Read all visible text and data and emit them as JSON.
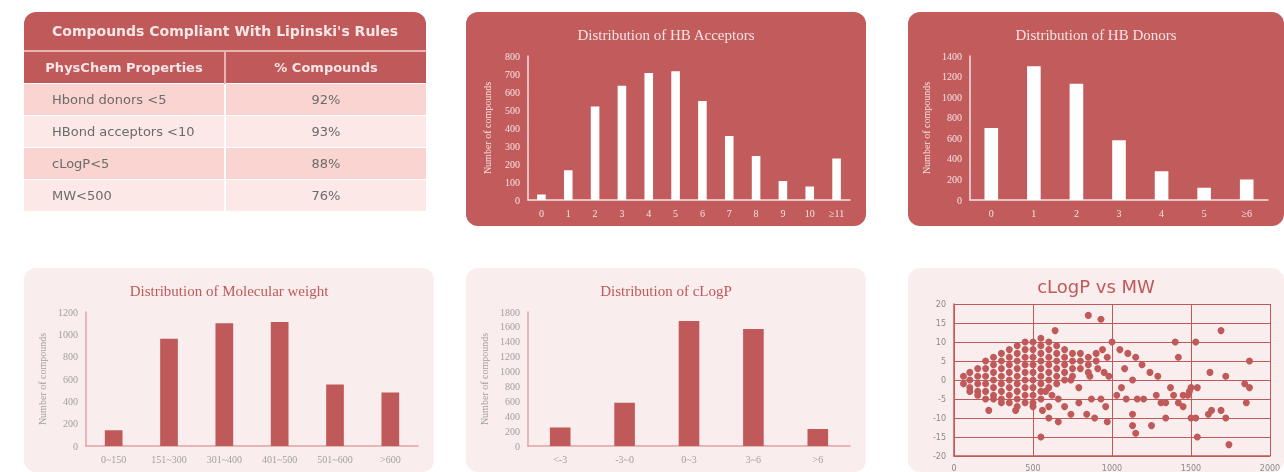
{
  "chart_data": [
    {
      "type": "other",
      "title": "Compounds Compliant With Lipinski's Rules",
      "xlabel": "PhysChem Properties",
      "ylabel": "% Compounds",
      "categories": [
        "Hbond donors <5",
        "HBond acceptors <10",
        "cLogP<5",
        "MW<500"
      ],
      "values": [
        92,
        93,
        88,
        76
      ],
      "value_labels": [
        "92%",
        "93%",
        "88%",
        "76%"
      ]
    },
    {
      "type": "bar",
      "title": "Distribution of HB Acceptors",
      "ylabel": "Number of compounds",
      "categories": [
        "0",
        "1",
        "2",
        "3",
        "4",
        "5",
        "6",
        "7",
        "8",
        "9",
        "10",
        "≥11"
      ],
      "values": [
        30,
        165,
        520,
        635,
        705,
        715,
        550,
        355,
        245,
        105,
        75,
        230
      ],
      "color": "#ffffff",
      "ylim": [
        0,
        800
      ],
      "yticks": [
        0,
        100,
        200,
        300,
        400,
        500,
        600,
        700,
        800
      ],
      "grid": false
    },
    {
      "type": "bar",
      "title": "Distribution of HB Donors",
      "ylabel": "Number of compounds",
      "categories": [
        "0",
        "1",
        "2",
        "3",
        "4",
        "5",
        "≥6"
      ],
      "values": [
        700,
        1300,
        1130,
        580,
        280,
        120,
        200
      ],
      "color": "#ffffff",
      "ylim": [
        0,
        1400
      ],
      "yticks": [
        0,
        200,
        400,
        600,
        800,
        1000,
        1200,
        1400
      ],
      "grid": false
    },
    {
      "type": "bar",
      "title": "Distribution of Molecular weight",
      "ylabel": "Number of compounds",
      "categories": [
        "0~150",
        "151~300",
        "301~400",
        "401~500",
        "501~600",
        ">600"
      ],
      "values": [
        140,
        960,
        1100,
        1110,
        550,
        480
      ],
      "color": "#c0595a",
      "ylim": [
        0,
        1200
      ],
      "yticks": [
        0,
        200,
        400,
        600,
        800,
        1000,
        1200
      ],
      "grid": false
    },
    {
      "type": "bar",
      "title": "Distribution of cLogP",
      "ylabel": "Number of compounds",
      "categories": [
        "<-3",
        "-3~0",
        "0~3",
        "3~6",
        ">6"
      ],
      "values": [
        250,
        580,
        1680,
        1570,
        230
      ],
      "color": "#c0595a",
      "ylim": [
        0,
        1800
      ],
      "yticks": [
        0,
        200,
        400,
        600,
        800,
        1000,
        1200,
        1400,
        1600,
        1800
      ],
      "grid": false
    },
    {
      "type": "scatter",
      "title": "cLogP vs MW",
      "color": "#c0595a",
      "marker": "circle",
      "grid": true,
      "xlim": [
        0,
        2000
      ],
      "xticks": [
        0,
        500,
        1000,
        1500,
        2000
      ],
      "ylim": [
        -20,
        20
      ],
      "yticks": [
        -20,
        -15,
        -10,
        -5,
        0,
        5,
        10,
        15,
        20
      ],
      "x": [
        60,
        60,
        100,
        100,
        100,
        100,
        150,
        150,
        150,
        150,
        150,
        200,
        200,
        200,
        200,
        200,
        200,
        250,
        250,
        250,
        250,
        250,
        250,
        250,
        300,
        300,
        300,
        300,
        300,
        300,
        300,
        300,
        350,
        350,
        350,
        350,
        350,
        350,
        350,
        350,
        400,
        400,
        400,
        400,
        400,
        400,
        400,
        400,
        400,
        450,
        450,
        450,
        450,
        450,
        450,
        450,
        450,
        450,
        500,
        500,
        500,
        500,
        500,
        500,
        500,
        500,
        500,
        500,
        550,
        550,
        550,
        550,
        550,
        550,
        550,
        550,
        550,
        600,
        600,
        600,
        600,
        600,
        600,
        600,
        650,
        650,
        650,
        650,
        650,
        650,
        700,
        700,
        700,
        700,
        700,
        750,
        750,
        750,
        750,
        800,
        800,
        800,
        850,
        850,
        850,
        900,
        900,
        640,
        850,
        930,
        1000,
        1400,
        1530,
        1690,
        1870,
        1420,
        1620,
        1720,
        1840,
        1870,
        1850,
        1540,
        1690,
        1720,
        1740,
        1540,
        1500,
        1530,
        1610,
        1630,
        1340,
        1310,
        1250,
        1130,
        1150,
        1130,
        970,
        550,
        840,
        890,
        600,
        660,
        220,
        390,
        1240,
        1190,
        1150,
        1050,
        1100,
        940,
        970,
        1080,
        1130,
        1060,
        1030,
        1090,
        1160,
        1200,
        1280,
        1370,
        1390,
        1420,
        1450,
        1480,
        1490,
        1500,
        1340,
        1450,
        950,
        910,
        980,
        860,
        790,
        740,
        930,
        960,
        870,
        790,
        700,
        740,
        660,
        620,
        600,
        580,
        560,
        1290
      ],
      "values": [
        1,
        -1,
        2,
        0,
        -2,
        -3,
        3,
        1,
        -1,
        -3,
        -4,
        5,
        3,
        1,
        -1,
        -3,
        -5,
        6,
        4,
        2,
        0,
        -2,
        -4,
        -5,
        7,
        5,
        3,
        1,
        -1,
        -3,
        -5,
        -6,
        8,
        6,
        4,
        2,
        0,
        -2,
        -4,
        -6,
        9,
        7,
        5,
        3,
        1,
        -1,
        -3,
        -5,
        -7,
        10,
        8,
        6,
        4,
        2,
        0,
        -2,
        -4,
        -6,
        10,
        8,
        6,
        4,
        2,
        0,
        -2,
        -4,
        -6,
        -7,
        11,
        9,
        7,
        5,
        3,
        1,
        -1,
        -3,
        -5,
        10,
        8,
        6,
        4,
        2,
        0,
        -2,
        9,
        7,
        5,
        3,
        1,
        -1,
        8,
        6,
        4,
        2,
        0,
        7,
        5,
        3,
        1,
        7,
        5,
        3,
        6,
        4,
        2,
        7,
        5,
        13,
        17,
        16,
        10,
        10,
        10,
        13,
        5,
        6,
        2,
        1,
        -1,
        -2,
        -6,
        -2,
        -8,
        -10,
        -17,
        -15,
        -10,
        -10,
        -9,
        -8,
        -10,
        -6,
        -12,
        -12,
        -14,
        -9,
        -11,
        -15,
        -9,
        -10,
        -10,
        -11,
        -8,
        -8,
        2,
        4,
        6,
        8,
        7,
        8,
        6,
        3,
        0,
        -2,
        -4,
        -5,
        -5,
        -5,
        -4,
        -2,
        -4,
        -6,
        -4,
        -4,
        -3,
        -2,
        -6,
        -7,
        2,
        3,
        1,
        1,
        -2,
        0,
        -5,
        -7,
        -5,
        -6,
        -7,
        -9,
        -5,
        -4,
        -7,
        -3,
        -8,
        1
      ]
    }
  ]
}
